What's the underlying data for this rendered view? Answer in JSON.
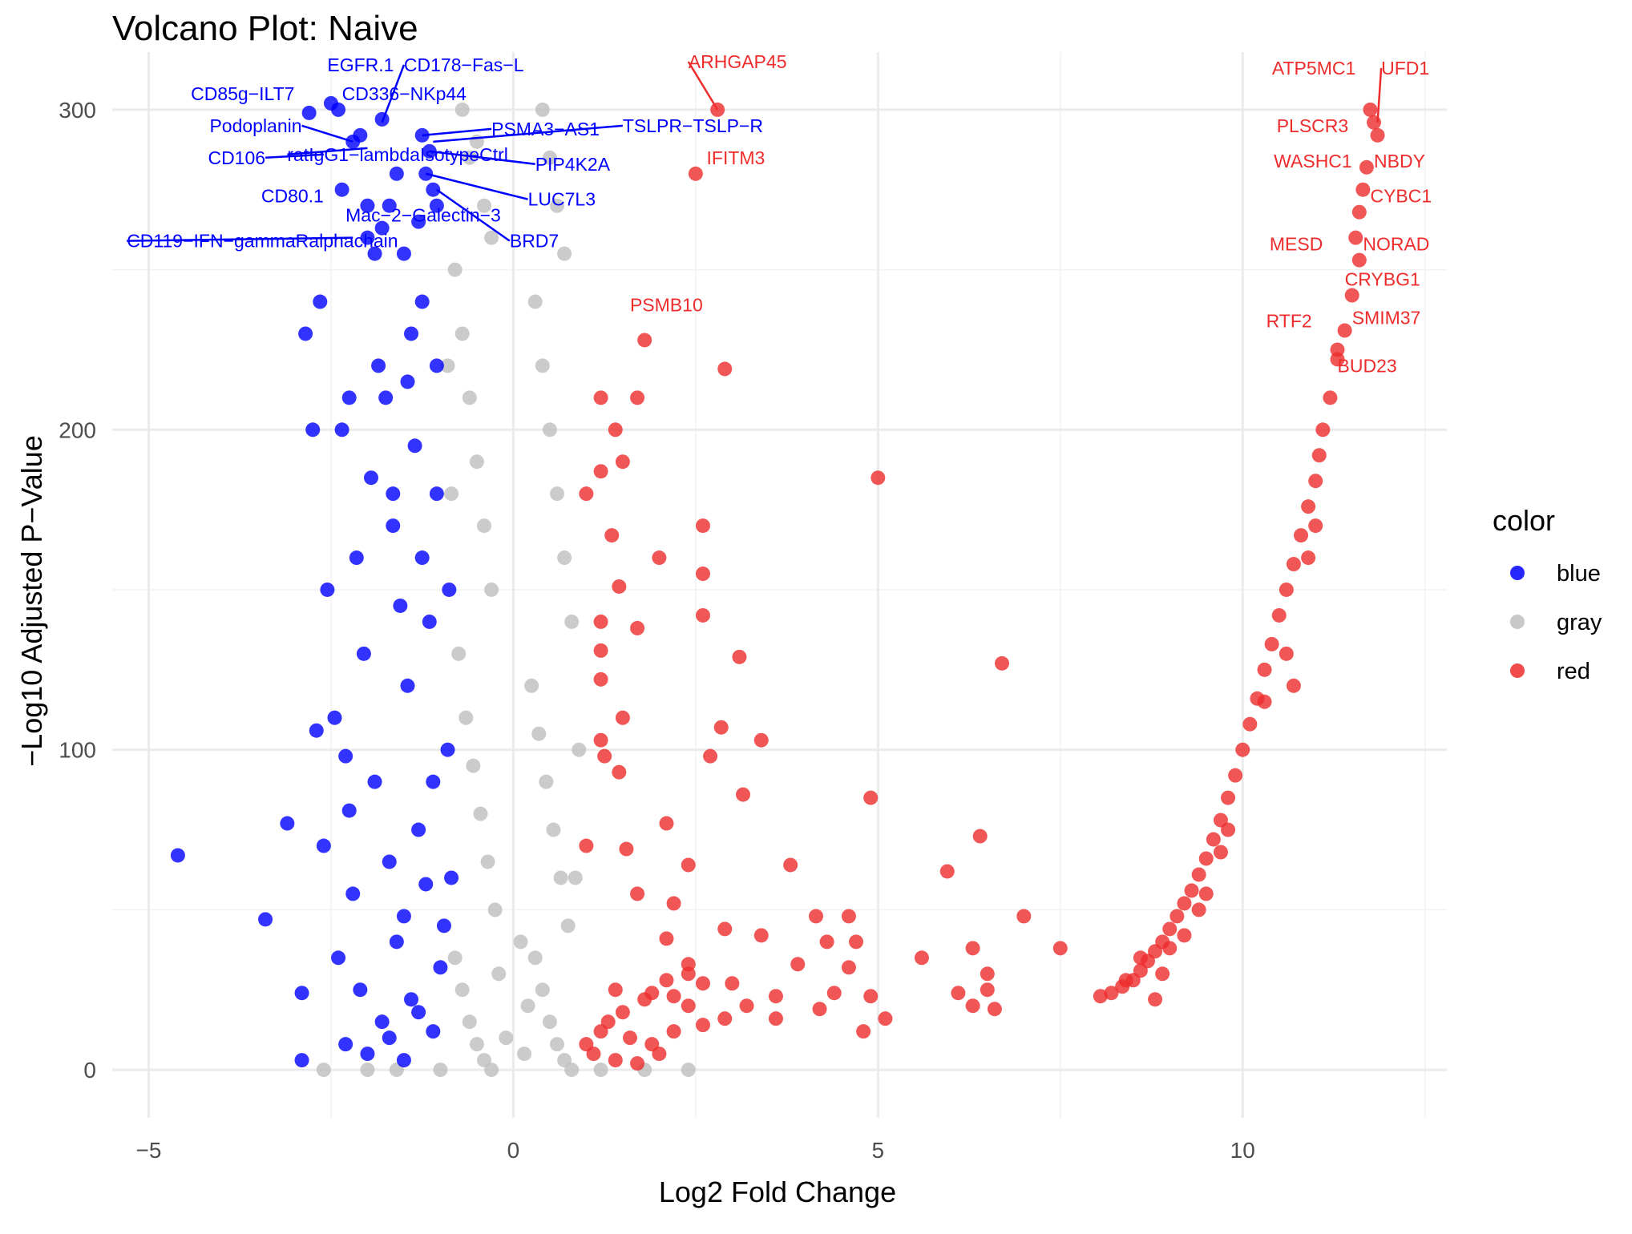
{
  "chart_data": {
    "type": "scatter",
    "title": "Volcano Plot: Naive",
    "xlabel": "Log2 Fold Change",
    "ylabel": "−Log10 Adjusted P−Value",
    "xlim": [
      -5.5,
      12.8
    ],
    "ylim": [
      -15,
      318
    ],
    "x_ticks": [
      -5,
      0,
      5,
      10
    ],
    "x_tick_labels": [
      "−5",
      "0",
      "5",
      "10"
    ],
    "y_ticks": [
      0,
      100,
      200,
      300
    ],
    "y_tick_labels": [
      "0",
      "100",
      "200",
      "300"
    ],
    "grid": true,
    "legend": {
      "title": "color",
      "position": "right",
      "entries": [
        {
          "label": "blue",
          "color": "#0000ff"
        },
        {
          "label": "gray",
          "color": "#bebebe"
        },
        {
          "label": "red",
          "color": "#ee2c2c"
        }
      ]
    },
    "series": [
      {
        "name": "blue",
        "color": "#0000ff",
        "points": [
          [
            -4.6,
            67
          ],
          [
            -3.4,
            47
          ],
          [
            -3.1,
            77
          ],
          [
            -2.9,
            3
          ],
          [
            -2.9,
            24
          ],
          [
            -2.8,
            299
          ],
          [
            -2.7,
            106
          ],
          [
            -2.5,
            302
          ],
          [
            -2.4,
            300
          ],
          [
            -2.35,
            275
          ],
          [
            -2.3,
            98
          ],
          [
            -2.25,
            81
          ],
          [
            -2.2,
            290
          ],
          [
            -2.1,
            292
          ],
          [
            -2.0,
            270
          ],
          [
            -2.0,
            260
          ],
          [
            -1.9,
            255
          ],
          [
            -1.8,
            297
          ],
          [
            -1.8,
            263
          ],
          [
            -1.7,
            270
          ],
          [
            -1.6,
            280
          ],
          [
            -1.5,
            255
          ],
          [
            -1.4,
            230
          ],
          [
            -1.3,
            265
          ],
          [
            -1.25,
            292
          ],
          [
            -1.2,
            280
          ],
          [
            -1.15,
            287
          ],
          [
            -1.1,
            275
          ],
          [
            -1.05,
            270
          ],
          [
            -2.55,
            150
          ],
          [
            -2.45,
            110
          ],
          [
            -2.35,
            200
          ],
          [
            -2.15,
            160
          ],
          [
            -2.05,
            130
          ],
          [
            -1.95,
            185
          ],
          [
            -1.75,
            210
          ],
          [
            -1.65,
            170
          ],
          [
            -1.55,
            145
          ],
          [
            -1.45,
            120
          ],
          [
            -1.35,
            195
          ],
          [
            -1.25,
            160
          ],
          [
            -1.15,
            140
          ],
          [
            -1.05,
            180
          ],
          [
            -2.6,
            70
          ],
          [
            -2.2,
            55
          ],
          [
            -1.9,
            90
          ],
          [
            -1.7,
            65
          ],
          [
            -1.5,
            48
          ],
          [
            -1.3,
            75
          ],
          [
            -1.1,
            90
          ],
          [
            -2.4,
            35
          ],
          [
            -2.1,
            25
          ],
          [
            -1.8,
            15
          ],
          [
            -1.6,
            40
          ],
          [
            -1.4,
            22
          ],
          [
            -1.2,
            58
          ],
          [
            -1.0,
            32
          ],
          [
            -2.3,
            8
          ],
          [
            -2.0,
            5
          ],
          [
            -1.7,
            10
          ],
          [
            -1.5,
            3
          ],
          [
            -1.3,
            18
          ],
          [
            -1.1,
            12
          ],
          [
            -0.95,
            45
          ],
          [
            -0.9,
            100
          ],
          [
            -0.88,
            150
          ],
          [
            -0.85,
            60
          ],
          [
            -2.75,
            200
          ],
          [
            -2.65,
            240
          ],
          [
            -2.85,
            230
          ],
          [
            -2.25,
            210
          ],
          [
            -1.85,
            220
          ],
          [
            -1.65,
            180
          ],
          [
            -1.45,
            215
          ],
          [
            -1.25,
            240
          ],
          [
            -1.05,
            220
          ]
        ]
      },
      {
        "name": "gray",
        "points": [
          [
            -0.7,
            300
          ],
          [
            -0.6,
            285
          ],
          [
            -0.5,
            290
          ],
          [
            -0.4,
            270
          ],
          [
            -0.3,
            260
          ],
          [
            0.4,
            300
          ],
          [
            0.5,
            285
          ],
          [
            0.6,
            270
          ],
          [
            0.7,
            255
          ],
          [
            -0.8,
            250
          ],
          [
            -0.7,
            230
          ],
          [
            -0.6,
            210
          ],
          [
            -0.5,
            190
          ],
          [
            -0.4,
            170
          ],
          [
            -0.3,
            150
          ],
          [
            0.3,
            240
          ],
          [
            0.4,
            220
          ],
          [
            0.5,
            200
          ],
          [
            0.6,
            180
          ],
          [
            0.7,
            160
          ],
          [
            0.8,
            140
          ],
          [
            -0.75,
            130
          ],
          [
            -0.65,
            110
          ],
          [
            -0.55,
            95
          ],
          [
            -0.45,
            80
          ],
          [
            -0.35,
            65
          ],
          [
            -0.25,
            50
          ],
          [
            0.25,
            120
          ],
          [
            0.35,
            105
          ],
          [
            0.45,
            90
          ],
          [
            0.55,
            75
          ],
          [
            0.65,
            60
          ],
          [
            0.75,
            45
          ],
          [
            -0.8,
            35
          ],
          [
            -0.7,
            25
          ],
          [
            -0.6,
            15
          ],
          [
            -0.5,
            8
          ],
          [
            -0.4,
            3
          ],
          [
            -0.3,
            0
          ],
          [
            0.3,
            35
          ],
          [
            0.4,
            25
          ],
          [
            0.5,
            15
          ],
          [
            0.6,
            8
          ],
          [
            0.7,
            3
          ],
          [
            0.8,
            0
          ],
          [
            -0.2,
            30
          ],
          [
            0.1,
            40
          ],
          [
            0.2,
            20
          ],
          [
            -0.1,
            10
          ],
          [
            0.15,
            5
          ],
          [
            1.2,
            0
          ],
          [
            1.8,
            0
          ],
          [
            2.4,
            0
          ],
          [
            -2.6,
            0
          ],
          [
            -2.0,
            0
          ],
          [
            -1.6,
            0
          ],
          [
            -1.0,
            0
          ],
          [
            0.9,
            100
          ],
          [
            0.85,
            60
          ],
          [
            -0.85,
            180
          ],
          [
            -0.9,
            220
          ]
        ]
      },
      {
        "name": "red",
        "points": [
          [
            2.8,
            300
          ],
          [
            2.5,
            280
          ],
          [
            1.8,
            228
          ],
          [
            2.9,
            219
          ],
          [
            1.2,
            210
          ],
          [
            1.7,
            210
          ],
          [
            1.4,
            200
          ],
          [
            1.5,
            190
          ],
          [
            1.2,
            187
          ],
          [
            5.0,
            185
          ],
          [
            1.0,
            180
          ],
          [
            2.6,
            170
          ],
          [
            1.35,
            167
          ],
          [
            2.0,
            160
          ],
          [
            2.6,
            155
          ],
          [
            1.45,
            151
          ],
          [
            2.6,
            142
          ],
          [
            1.2,
            140
          ],
          [
            1.7,
            138
          ],
          [
            3.1,
            129
          ],
          [
            1.2,
            131
          ],
          [
            6.7,
            127
          ],
          [
            1.2,
            122
          ],
          [
            1.5,
            110
          ],
          [
            2.85,
            107
          ],
          [
            1.2,
            103
          ],
          [
            3.4,
            103
          ],
          [
            1.45,
            93
          ],
          [
            2.7,
            98
          ],
          [
            1.25,
            98
          ],
          [
            3.15,
            86
          ],
          [
            4.9,
            85
          ],
          [
            2.1,
            77
          ],
          [
            1.0,
            70
          ],
          [
            6.4,
            73
          ],
          [
            1.55,
            69
          ],
          [
            3.8,
            64
          ],
          [
            2.4,
            64
          ],
          [
            5.95,
            62
          ],
          [
            1.7,
            55
          ],
          [
            2.2,
            52
          ],
          [
            2.9,
            44
          ],
          [
            4.6,
            48
          ],
          [
            4.15,
            48
          ],
          [
            7.0,
            48
          ],
          [
            2.1,
            41
          ],
          [
            3.4,
            42
          ],
          [
            4.3,
            40
          ],
          [
            4.7,
            40
          ],
          [
            7.5,
            38
          ],
          [
            5.6,
            35
          ],
          [
            6.3,
            38
          ],
          [
            2.4,
            33
          ],
          [
            3.9,
            33
          ],
          [
            4.6,
            32
          ],
          [
            6.5,
            30
          ],
          [
            2.6,
            27
          ],
          [
            3.0,
            27
          ],
          [
            1.4,
            25
          ],
          [
            1.9,
            24
          ],
          [
            2.2,
            23
          ],
          [
            3.6,
            23
          ],
          [
            4.4,
            24
          ],
          [
            4.9,
            23
          ],
          [
            6.1,
            24
          ],
          [
            6.5,
            25
          ],
          [
            2.4,
            20
          ],
          [
            3.2,
            20
          ],
          [
            4.2,
            19
          ],
          [
            5.1,
            16
          ],
          [
            6.3,
            20
          ],
          [
            6.6,
            19
          ],
          [
            2.9,
            16
          ],
          [
            3.6,
            16
          ],
          [
            4.8,
            12
          ],
          [
            1.3,
            15
          ],
          [
            1.6,
            10
          ],
          [
            1.9,
            8
          ],
          [
            2.2,
            12
          ],
          [
            2.6,
            14
          ],
          [
            1.1,
            5
          ],
          [
            1.4,
            3
          ],
          [
            1.7,
            2
          ],
          [
            2.0,
            5
          ],
          [
            1.0,
            8
          ],
          [
            1.2,
            12
          ],
          [
            1.5,
            18
          ],
          [
            1.8,
            22
          ],
          [
            2.1,
            28
          ],
          [
            2.4,
            30
          ],
          [
            8.05,
            23
          ],
          [
            8.2,
            24
          ],
          [
            8.35,
            26
          ],
          [
            8.5,
            28
          ],
          [
            8.6,
            31
          ],
          [
            8.7,
            34
          ],
          [
            8.8,
            37
          ],
          [
            8.9,
            40
          ],
          [
            9.0,
            44
          ],
          [
            9.1,
            48
          ],
          [
            9.2,
            52
          ],
          [
            9.3,
            56
          ],
          [
            9.4,
            61
          ],
          [
            9.5,
            66
          ],
          [
            9.6,
            72
          ],
          [
            9.7,
            78
          ],
          [
            9.8,
            85
          ],
          [
            9.9,
            92
          ],
          [
            10.0,
            100
          ],
          [
            10.1,
            108
          ],
          [
            10.2,
            116
          ],
          [
            10.3,
            125
          ],
          [
            10.4,
            133
          ],
          [
            10.5,
            142
          ],
          [
            10.6,
            150
          ],
          [
            10.7,
            158
          ],
          [
            10.8,
            167
          ],
          [
            10.9,
            176
          ],
          [
            11.0,
            184
          ],
          [
            11.05,
            192
          ],
          [
            11.1,
            200
          ],
          [
            11.2,
            210
          ],
          [
            11.3,
            222
          ],
          [
            11.4,
            231
          ],
          [
            11.5,
            242
          ],
          [
            11.55,
            260
          ],
          [
            11.6,
            268
          ],
          [
            11.7,
            282
          ],
          [
            11.75,
            300
          ],
          [
            11.8,
            296
          ],
          [
            11.85,
            292
          ],
          [
            11.65,
            275
          ],
          [
            11.6,
            253
          ],
          [
            11.3,
            225
          ],
          [
            10.7,
            120
          ],
          [
            8.9,
            30
          ],
          [
            8.8,
            22
          ],
          [
            9.2,
            42
          ],
          [
            9.5,
            55
          ],
          [
            9.8,
            75
          ],
          [
            10.3,
            115
          ],
          [
            10.6,
            130
          ],
          [
            10.9,
            160
          ],
          [
            11.0,
            170
          ],
          [
            8.4,
            28
          ],
          [
            8.6,
            35
          ],
          [
            9.0,
            38
          ],
          [
            9.4,
            50
          ],
          [
            9.7,
            68
          ]
        ]
      }
    ],
    "annotations": {
      "blue": [
        "EGFR.1",
        "CD178−Fas−L",
        "CD85g−ILT7",
        "CD336−NKp44",
        "Podoplanin",
        "PSMA3−AS1",
        "TSLPR−TSLP−R",
        "CD106",
        "ratIgG1−lambdaIsotypeCtrl",
        "PIP4K2A",
        "CD80.1",
        "LUC7L3",
        "Mac−2−Galectin−3",
        "BRD7",
        "CD119−IFN−gammaRalphachain"
      ],
      "red": [
        "ARHGAP45",
        "IFITM3",
        "PSMB10",
        "ATP5MC1",
        "UFD1",
        "PLSCR3",
        "WASHC1",
        "NBDY",
        "CYBC1",
        "MESD",
        "NORAD",
        "CRYBG1",
        "RTF2",
        "SMIM37",
        "BUD23"
      ]
    }
  }
}
